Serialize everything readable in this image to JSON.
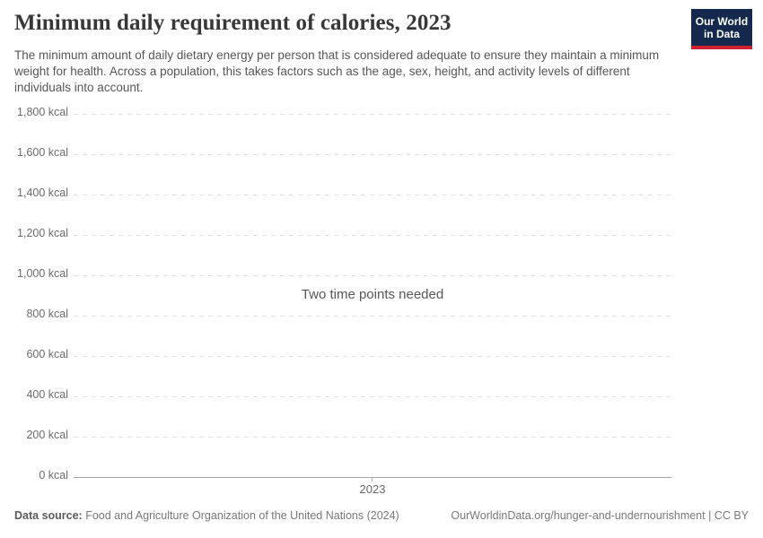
{
  "header": {
    "title": "Minimum daily requirement of calories, 2023",
    "subtitle": "The minimum amount of daily dietary energy per person that is considered adequate to ensure they maintain a minimum weight for health. Across a population, this takes factors such as the age, sex, height, and activity levels of different individuals into account.",
    "logo": {
      "line1": "Our World",
      "line2": "in Data"
    }
  },
  "chart_data": {
    "type": "line",
    "title": "Minimum daily requirement of calories, 2023",
    "series": [],
    "empty_message": "Two time points needed",
    "x_ticks": [
      "2023"
    ],
    "y_ticks": [
      "1,800 kcal",
      "1,600 kcal",
      "1,400 kcal",
      "1,200 kcal",
      "1,000 kcal",
      "800 kcal",
      "600 kcal",
      "400 kcal",
      "200 kcal",
      "0 kcal"
    ],
    "y_unit": "kcal",
    "ylim": [
      0,
      1800
    ],
    "y_tick_interval": 200,
    "grid": "horizontal-dashed",
    "legend": "none",
    "xlabel": "",
    "ylabel": ""
  },
  "footer": {
    "datasource_label": "Data source:",
    "datasource_value": " Food and Agriculture Organization of the United Nations (2024)",
    "link": "OurWorldinData.org/hunger-and-undernourishment | CC BY"
  },
  "colors": {
    "logo_navy": "#15294f",
    "logo_red": "#cf2030",
    "gridline": "#e2e2e2",
    "axis": "#a6a6a6",
    "title_text": "#383838",
    "subtitle_text": "#565656",
    "tick_text": "#6b6b6b",
    "footer_text": "#787878"
  }
}
